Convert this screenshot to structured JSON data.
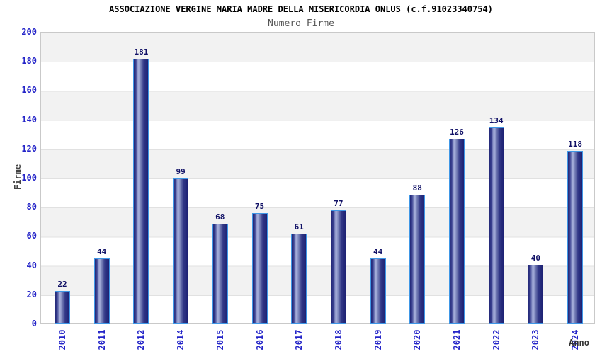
{
  "header": {
    "title": "ASSOCIAZIONE VERGINE MARIA MADRE DELLA MISERICORDIA ONLUS (c.f.91023340754)",
    "subtitle": "Numero Firme"
  },
  "chart_data": {
    "type": "bar",
    "title": "Numero Firme",
    "categories": [
      "2010",
      "2011",
      "2012",
      "2014",
      "2015",
      "2016",
      "2017",
      "2018",
      "2019",
      "2020",
      "2021",
      "2022",
      "2023",
      "2024"
    ],
    "values": [
      22,
      44,
      181,
      99,
      68,
      75,
      61,
      77,
      44,
      88,
      126,
      134,
      40,
      118
    ],
    "xlabel": "Anno",
    "ylabel": "Firme",
    "ylim": [
      0,
      200
    ],
    "y_ticks": [
      0,
      20,
      40,
      60,
      80,
      100,
      120,
      140,
      160,
      180,
      200
    ],
    "grid": "horizontal-bands-alternating",
    "legend": "none",
    "bar_value_labels_shown": true,
    "x_tick_rotation_deg": 90,
    "colors": {
      "tick_label": "#2424c8",
      "value_label": "#111166",
      "bar_edge": "#3f97e6",
      "bar_dark": "#232878",
      "bar_darkest": "#1d2173",
      "bar_light": "#a2abd8",
      "band_gray": "#f2f2f2",
      "band_white": "#ffffff",
      "grid_line": "#e1e1e1",
      "plot_border": "#c9c9c9",
      "title_color": "#000000",
      "subtitle_color": "#555555",
      "axis_title_color": "#444444"
    }
  }
}
